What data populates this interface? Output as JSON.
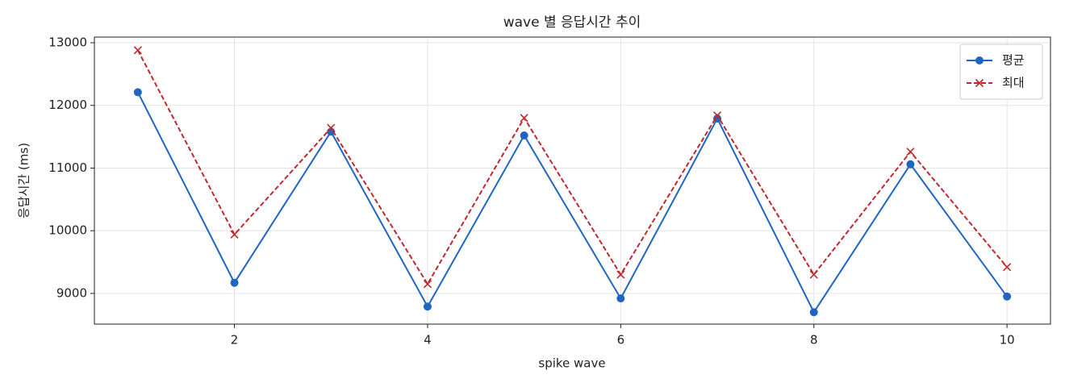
{
  "chart_data": {
    "type": "line",
    "title": "wave 별 응답시간 추이",
    "x_label": "spike wave",
    "y_label": "응답시간 (ms)",
    "x": [
      1,
      2,
      3,
      4,
      5,
      6,
      7,
      8,
      9,
      10
    ],
    "series": [
      {
        "name": "평균",
        "color": "#1f66c2",
        "linestyle": "solid",
        "marker": "circle",
        "values": [
          12210,
          9170,
          11580,
          8790,
          11520,
          8920,
          11790,
          8700,
          11060,
          8950
        ]
      },
      {
        "name": "최대",
        "color": "#c0282e",
        "linestyle": "dashed",
        "marker": "x",
        "values": [
          12880,
          9940,
          11640,
          9150,
          11800,
          9300,
          11840,
          9300,
          11260,
          9420
        ]
      }
    ],
    "xlim": [
      0.55,
      10.45
    ],
    "xticks": [
      2,
      4,
      6,
      8,
      10
    ],
    "ylim": [
      8510,
      13090
    ],
    "yticks": [
      9000,
      10000,
      11000,
      12000,
      13000
    ],
    "grid": true,
    "legend": "upper right"
  }
}
